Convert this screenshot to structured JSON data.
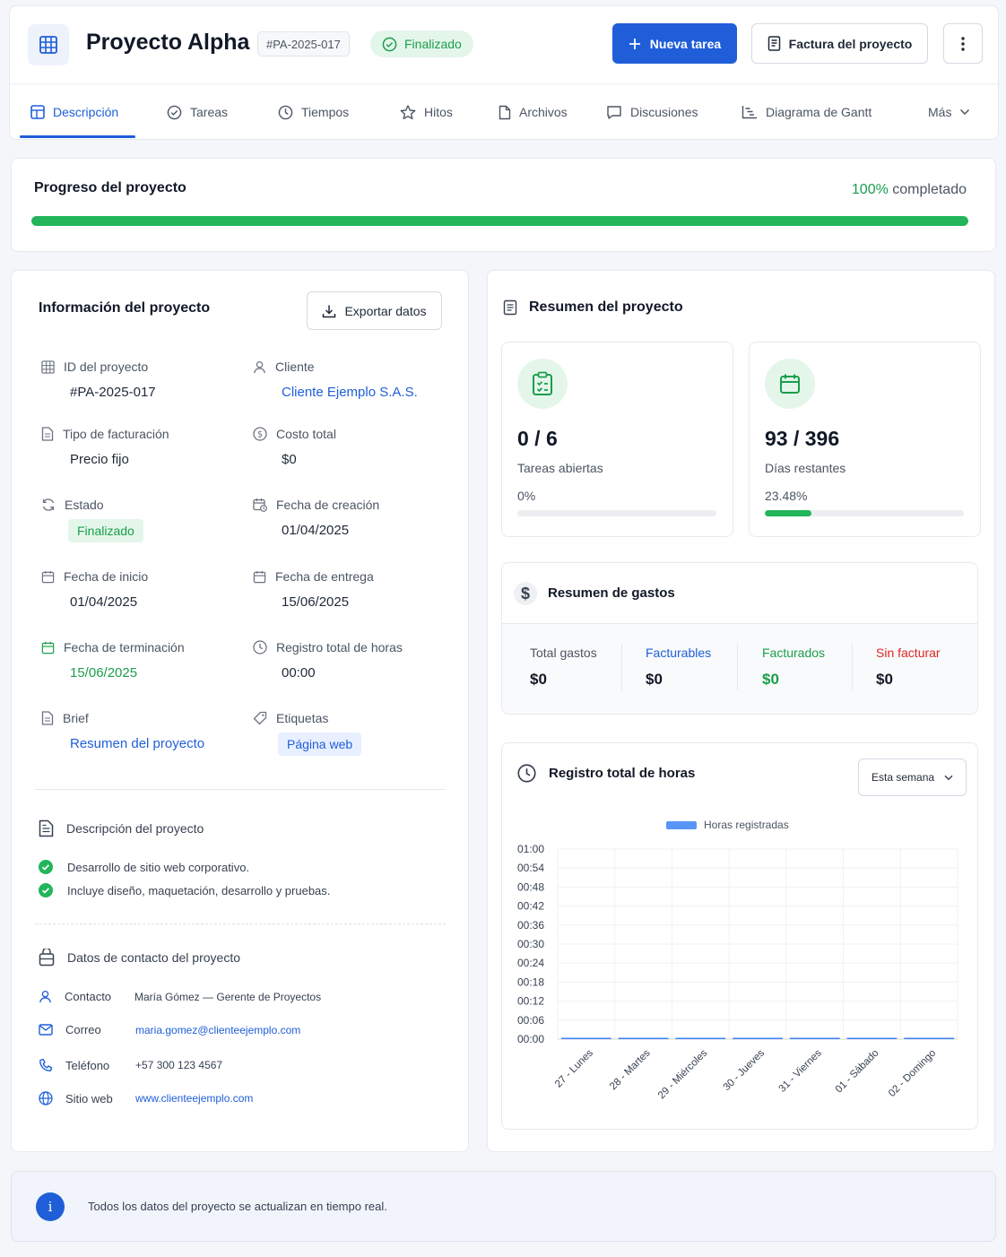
{
  "header": {
    "title": "Proyecto Alpha",
    "id_badge": "#PA-2025-017",
    "status": "Finalizado",
    "new_task_label": "Nueva tarea",
    "invoice_label": "Factura del proyecto"
  },
  "tabs": [
    {
      "label": "Descripción",
      "icon": "layout-icon"
    },
    {
      "label": "Tareas",
      "icon": "check-circle-icon"
    },
    {
      "label": "Tiempos",
      "icon": "clock-icon"
    },
    {
      "label": "Hitos",
      "icon": "star-icon"
    },
    {
      "label": "Archivos",
      "icon": "file-icon"
    },
    {
      "label": "Discusiones",
      "icon": "chat-icon"
    },
    {
      "label": "Diagrama de Gantt",
      "icon": "gantt-icon"
    },
    {
      "label": "Más",
      "icon": "chevron-down-icon"
    }
  ],
  "progress": {
    "title": "Progreso del proyecto",
    "percent_text": "100%",
    "suffix": "completado",
    "fraction": 1.0
  },
  "info": {
    "title": "Información del proyecto",
    "export_label": "Exportar datos",
    "fields": {
      "project_id": {
        "label": "ID del proyecto",
        "value": "#PA-2025-017"
      },
      "client": {
        "label": "Cliente",
        "value": "Cliente Ejemplo S.A.S."
      },
      "billing_type": {
        "label": "Tipo de facturación",
        "value": "Precio fijo"
      },
      "total_cost": {
        "label": "Costo total",
        "value": "$0"
      },
      "status": {
        "label": "Estado",
        "value": "Finalizado"
      },
      "created": {
        "label": "Fecha de creación",
        "value": "01/04/2025"
      },
      "start": {
        "label": "Fecha de inicio",
        "value": "01/04/2025"
      },
      "due": {
        "label": "Fecha de entrega",
        "value": "15/06/2025"
      },
      "finished": {
        "label": "Fecha de terminación",
        "value": "15/06/2025"
      },
      "hours_total": {
        "label": "Registro total de horas",
        "value": "00:00"
      },
      "brief": {
        "label": "Brief",
        "value": "Resumen del proyecto"
      },
      "tags": {
        "label": "Etiquetas",
        "value": "Página web"
      }
    },
    "description": {
      "title": "Descripción del proyecto",
      "items": [
        "Desarrollo de sitio web corporativo.",
        "Incluye diseño, maquetación, desarrollo y pruebas."
      ]
    },
    "contact": {
      "title": "Datos de contacto del proyecto",
      "rows": [
        {
          "label": "Contacto",
          "value": "María Gómez — Gerente de Proyectos"
        },
        {
          "label": "Correo",
          "value": "maria.gomez@clienteejemplo.com"
        },
        {
          "label": "Teléfono",
          "value": "+57 300 123 4567"
        },
        {
          "label": "Sitio web",
          "value": "www.clienteejemplo.com"
        }
      ]
    }
  },
  "summary": {
    "title": "Resumen del proyecto",
    "tasks": {
      "value": "0 / 6",
      "label": "Tareas abiertas",
      "percent": "0%",
      "fraction": 0.0
    },
    "days": {
      "value": "93 / 396",
      "label": "Días restantes",
      "percent": "23.48%",
      "fraction": 0.2348
    },
    "expenses": {
      "title": "Resumen de gastos",
      "total": {
        "label": "Total gastos",
        "value": "$0"
      },
      "billable": {
        "label": "Facturables",
        "value": "$0"
      },
      "billed": {
        "label": "Facturados",
        "value": "$0"
      },
      "unbilled": {
        "label": "Sin facturar",
        "value": "$0"
      }
    },
    "hours": {
      "title": "Registro total de horas",
      "range_select": "Esta semana"
    }
  },
  "chart_data": {
    "type": "bar",
    "categories": [
      "27 - Lunes",
      "28 - Martes",
      "29 - Miércoles",
      "30 - Jueves",
      "31 - Viernes",
      "01 - Sábado",
      "02 - Domingo"
    ],
    "series": [
      {
        "name": "Horas registradas",
        "values": [
          0,
          0,
          0,
          0,
          0,
          0,
          0
        ]
      }
    ],
    "y_tick_labels": [
      "00:00",
      "00:06",
      "00:12",
      "00:18",
      "00:24",
      "00:30",
      "00:36",
      "00:42",
      "00:48",
      "00:54",
      "01:00"
    ],
    "ylim": [
      0,
      60
    ],
    "legend": "top-center",
    "grid": true,
    "colors": {
      "bar": "#3b82f6"
    }
  },
  "footer": {
    "text": "Todos los datos del proyecto se actualizan en tiempo real."
  },
  "colors": {
    "primary": "#1f5ed8",
    "success": "#22b55a",
    "danger": "#dc2626"
  }
}
